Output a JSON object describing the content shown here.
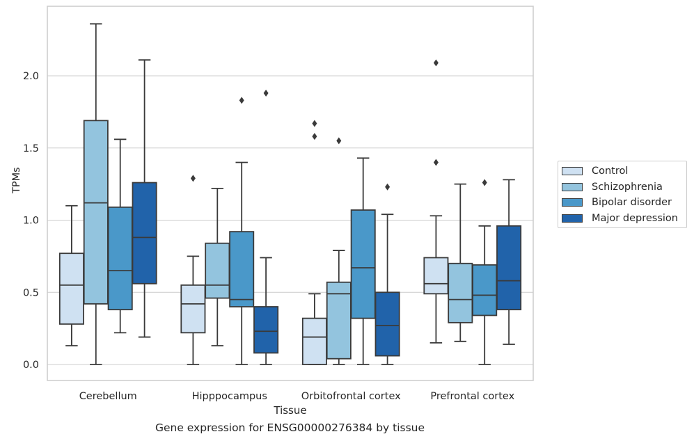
{
  "chart_data": {
    "type": "box",
    "caption": "Gene expression for ENSG00000276384 by tissue",
    "xlabel": "Tissue",
    "ylabel": "TPMs",
    "ylim": [
      -0.11,
      2.48
    ],
    "yticks": [
      "0.0",
      "0.5",
      "1.0",
      "1.5",
      "2.0"
    ],
    "grid": true,
    "legend_position": "right",
    "categories": [
      "Cerebellum",
      "Hipppocampus",
      "Orbitofrontal cortex",
      "Prefrontal cortex"
    ],
    "series": [
      {
        "name": "Control",
        "color": "#cfe1f2",
        "boxes": [
          {
            "whislo": 0.13,
            "q1": 0.28,
            "med": 0.55,
            "q3": 0.77,
            "whishi": 1.1,
            "fliers": []
          },
          {
            "whislo": 0.0,
            "q1": 0.22,
            "med": 0.42,
            "q3": 0.55,
            "whishi": 0.75,
            "fliers": [
              1.29
            ]
          },
          {
            "whislo": 0.0,
            "q1": 0.0,
            "med": 0.19,
            "q3": 0.32,
            "whishi": 0.49,
            "fliers": [
              1.58,
              1.67
            ]
          },
          {
            "whislo": 0.15,
            "q1": 0.49,
            "med": 0.56,
            "q3": 0.74,
            "whishi": 1.03,
            "fliers": [
              1.4,
              2.09
            ]
          }
        ]
      },
      {
        "name": "Schizophrenia",
        "color": "#93c4de",
        "boxes": [
          {
            "whislo": 0.0,
            "q1": 0.42,
            "med": 1.12,
            "q3": 1.69,
            "whishi": 2.36,
            "fliers": []
          },
          {
            "whislo": 0.13,
            "q1": 0.46,
            "med": 0.55,
            "q3": 0.84,
            "whishi": 1.22,
            "fliers": []
          },
          {
            "whislo": 0.0,
            "q1": 0.04,
            "med": 0.49,
            "q3": 0.57,
            "whishi": 0.79,
            "fliers": [
              1.55
            ]
          },
          {
            "whislo": 0.16,
            "q1": 0.29,
            "med": 0.45,
            "q3": 0.7,
            "whishi": 1.25,
            "fliers": []
          }
        ]
      },
      {
        "name": "Bipolar disorder",
        "color": "#4a98c9",
        "boxes": [
          {
            "whislo": 0.22,
            "q1": 0.38,
            "med": 0.65,
            "q3": 1.09,
            "whishi": 1.56,
            "fliers": []
          },
          {
            "whislo": 0.0,
            "q1": 0.4,
            "med": 0.45,
            "q3": 0.92,
            "whishi": 1.4,
            "fliers": [
              1.83
            ]
          },
          {
            "whislo": 0.0,
            "q1": 0.32,
            "med": 0.67,
            "q3": 1.07,
            "whishi": 1.43,
            "fliers": []
          },
          {
            "whislo": 0.0,
            "q1": 0.34,
            "med": 0.48,
            "q3": 0.69,
            "whishi": 0.96,
            "fliers": [
              1.26
            ]
          }
        ]
      },
      {
        "name": "Major depression",
        "color": "#2163aa",
        "boxes": [
          {
            "whislo": 0.19,
            "q1": 0.56,
            "med": 0.88,
            "q3": 1.26,
            "whishi": 2.11,
            "fliers": []
          },
          {
            "whislo": 0.0,
            "q1": 0.08,
            "med": 0.23,
            "q3": 0.4,
            "whishi": 0.74,
            "fliers": [
              1.88
            ]
          },
          {
            "whislo": 0.0,
            "q1": 0.06,
            "med": 0.27,
            "q3": 0.5,
            "whishi": 1.04,
            "fliers": [
              1.23
            ]
          },
          {
            "whislo": 0.14,
            "q1": 0.38,
            "med": 0.58,
            "q3": 0.96,
            "whishi": 1.28,
            "fliers": []
          }
        ]
      }
    ]
  }
}
